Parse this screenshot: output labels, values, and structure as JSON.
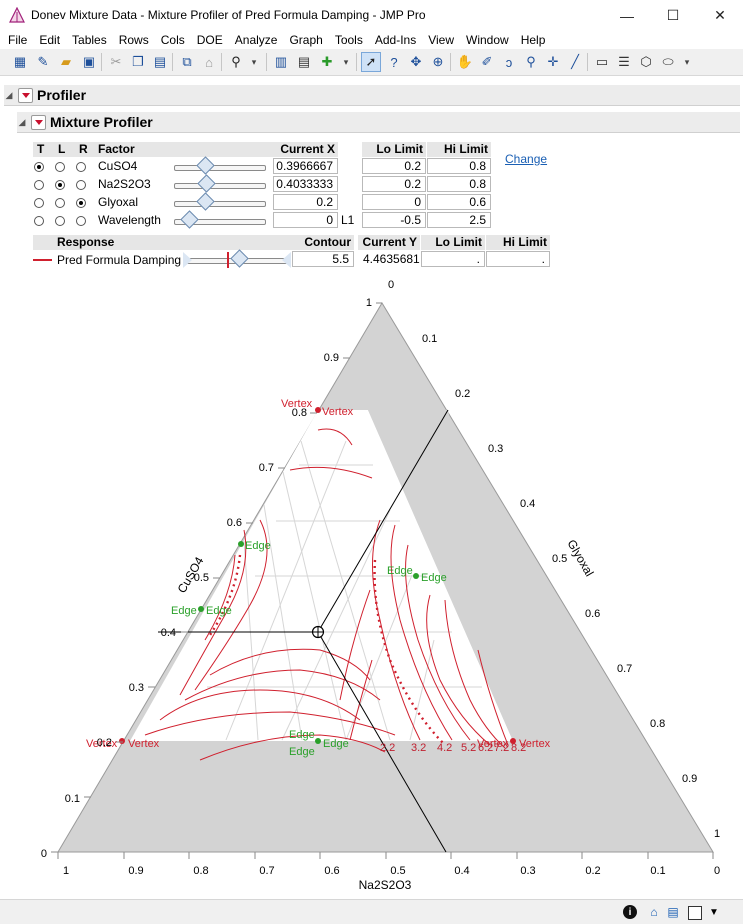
{
  "window": {
    "title": "Donev Mixture Data - Mixture Profiler of Pred Formula Damping - JMP Pro",
    "minimize": "—",
    "maximize": "☐",
    "close": "✕"
  },
  "menu": [
    "File",
    "Edit",
    "Tables",
    "Rows",
    "Cols",
    "DOE",
    "Analyze",
    "Graph",
    "Tools",
    "Add-Ins",
    "View",
    "Window",
    "Help"
  ],
  "toolbar_icons": [
    "new-data-table-icon",
    "new-script-icon",
    "open-icon",
    "save-icon",
    "cut-icon",
    "copy-icon",
    "paste-icon",
    "journal-icon",
    "lock-icon",
    "search-icon",
    "data-table-icon",
    "distribution-icon",
    "add-icon",
    "arrow-tool-icon",
    "help-tool-icon",
    "selection-tool-icon",
    "scroller-tool-icon",
    "hand-tool-icon",
    "brush-tool-icon",
    "lasso-tool-icon",
    "magnifier-tool-icon",
    "crosshair-tool-icon",
    "line-tool-icon",
    "annotate-tool-icon",
    "polygon-tool-icon",
    "simple-shape-tool-icon",
    "ellipse-tool-icon"
  ],
  "profiler": {
    "title": "Profiler"
  },
  "mixture_profiler": {
    "title": "Mixture Profiler"
  },
  "factor_table": {
    "headers": {
      "t": "T",
      "l": "L",
      "r": "R",
      "factor": "Factor",
      "current_x": "Current X",
      "lo_limit": "Lo Limit",
      "hi_limit": "Hi Limit"
    },
    "change_link": "Change",
    "rows": [
      {
        "factor": "CuSO4",
        "current_x": "0.3966667",
        "lo": "0.2",
        "hi": "0.8",
        "radio": "T",
        "slider_pos": 0.39,
        "suffix": ""
      },
      {
        "factor": "Na2S2O3",
        "current_x": "0.4033333",
        "lo": "0.2",
        "hi": "0.8",
        "radio": "L",
        "slider_pos": 0.4,
        "suffix": ""
      },
      {
        "factor": "Glyoxal",
        "current_x": "0.2",
        "lo": "0",
        "hi": "0.6",
        "radio": "R",
        "slider_pos": 0.33,
        "suffix": ""
      },
      {
        "factor": "Wavelength",
        "current_x": "0",
        "lo": "-0.5",
        "hi": "2.5",
        "radio": "",
        "slider_pos": 0.17,
        "suffix": "L1"
      }
    ]
  },
  "response_table": {
    "headers": {
      "response": "Response",
      "contour": "Contour",
      "current_y": "Current Y",
      "lo_limit": "Lo Limit",
      "hi_limit": "Hi Limit"
    },
    "row": {
      "name": "Pred Formula Damping",
      "contour": "5.5",
      "current_y": "4.4635681",
      "lo": ".",
      "hi": "."
    },
    "line_color": "#d0202e"
  },
  "ternary": {
    "left_axis": "CuSO4",
    "bottom_axis": "Na2S2O3",
    "right_axis": "Glyoxal",
    "left_ticks": [
      "0",
      "0.1",
      "0.2",
      "0.3",
      "0.4",
      "0.5",
      "0.6",
      "0.7",
      "0.8",
      "0.9",
      "1"
    ],
    "bottom_ticks": [
      "1",
      "0.9",
      "0.8",
      "0.7",
      "0.6",
      "0.5",
      "0.4",
      "0.3",
      "0.2",
      "0.1",
      "0"
    ],
    "right_ticks": [
      "0",
      "0.1",
      "0.2",
      "0.3",
      "0.4",
      "0.5",
      "0.6",
      "0.7",
      "0.8",
      "0.9",
      "1"
    ],
    "contour_labels": [
      "2.2",
      "3.2",
      "4.2",
      "5.2",
      "6.2",
      "7.2",
      "8.2"
    ],
    "marker_labels": {
      "vertex": "Vertex",
      "edge": "Edge"
    },
    "current_point": {
      "cuso4": 0.3966667,
      "na2s2o3": 0.4033333,
      "glyoxal": 0.2
    },
    "colors": {
      "shade": "#d3d3d3",
      "contour": "#d0202e",
      "vertex": "#d0202e",
      "edge": "#2aa02a",
      "grid": "#cfcfcf"
    }
  },
  "status_icons": [
    "info-icon",
    "home-icon",
    "window-list-icon",
    "checkbox-icon",
    "dropdown-icon"
  ]
}
